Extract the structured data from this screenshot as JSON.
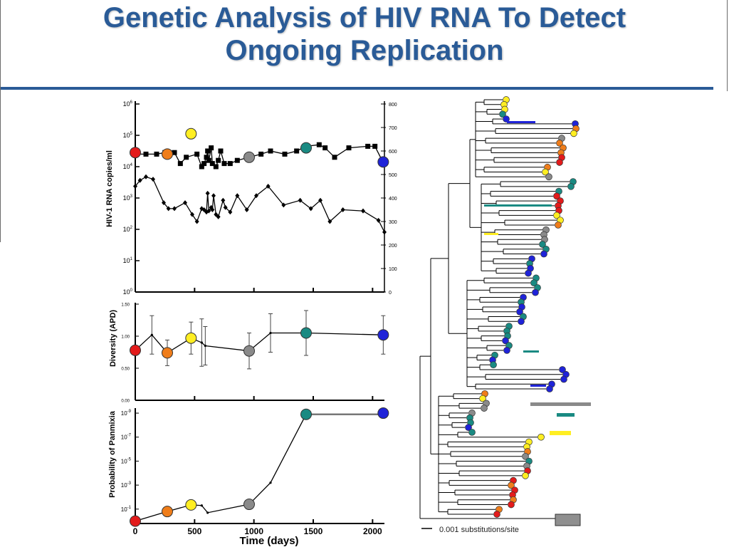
{
  "slide": {
    "title_line1": "Genetic Analysis of HIV RNA To Detect",
    "title_line2": "Ongoing Replication"
  },
  "colors": {
    "title": "#2a5b97",
    "red": "#e31b1b",
    "orange": "#ef7d1a",
    "yellow": "#ffee22",
    "gray": "#8a8a8a",
    "teal": "#1a8a82",
    "blue": "#1f23d8"
  },
  "chart_data": [
    {
      "type": "line",
      "panel": "viral-load",
      "xlim": [
        0,
        2100
      ],
      "ylabel": "HIV-1 RNA copies/ml",
      "y_ticks_left": [
        "10^0",
        "10^1",
        "10^2",
        "10^3",
        "10^4",
        "10^5",
        "10^6"
      ],
      "y_ticks_right": [
        "0",
        "100",
        "200",
        "300",
        "400",
        "500",
        "600",
        "700",
        "800"
      ],
      "ylim_right": [
        0,
        800
      ],
      "series": [
        {
          "marker": "square",
          "points": [
            [
              0,
              4.4
            ],
            [
              90,
              4.4
            ],
            [
              180,
              4.4
            ],
            [
              250,
              4.45
            ],
            [
              330,
              4.45
            ],
            [
              380,
              4.1
            ],
            [
              430,
              4.3
            ],
            [
              520,
              4.4
            ],
            [
              560,
              4.0
            ],
            [
              580,
              4.1
            ],
            [
              600,
              4.3
            ],
            [
              610,
              4.5
            ],
            [
              620,
              4.2
            ],
            [
              640,
              4.6
            ],
            [
              650,
              4.1
            ],
            [
              680,
              4.0
            ],
            [
              700,
              4.2
            ],
            [
              720,
              4.5
            ],
            [
              750,
              4.1
            ],
            [
              800,
              4.1
            ],
            [
              860,
              4.2
            ],
            [
              960,
              4.3
            ],
            [
              1060,
              4.4
            ],
            [
              1140,
              4.5
            ],
            [
              1260,
              4.4
            ],
            [
              1360,
              4.5
            ],
            [
              1440,
              4.65
            ],
            [
              1550,
              4.7
            ],
            [
              1600,
              4.6
            ],
            [
              1680,
              4.3
            ],
            [
              1800,
              4.6
            ],
            [
              1960,
              4.65
            ],
            [
              2020,
              4.65
            ],
            [
              2080,
              4.2
            ]
          ]
        },
        {
          "marker": "diamond",
          "points": [
            [
              0,
              450
            ],
            [
              40,
              475
            ],
            [
              90,
              490
            ],
            [
              150,
              480
            ],
            [
              240,
              380
            ],
            [
              280,
              355
            ],
            [
              330,
              355
            ],
            [
              420,
              380
            ],
            [
              480,
              330
            ],
            [
              520,
              300
            ],
            [
              560,
              355
            ],
            [
              580,
              350
            ],
            [
              600,
              340
            ],
            [
              610,
              420
            ],
            [
              620,
              345
            ],
            [
              640,
              360
            ],
            [
              650,
              350
            ],
            [
              660,
              410
            ],
            [
              680,
              330
            ],
            [
              700,
              320
            ],
            [
              740,
              390
            ],
            [
              760,
              360
            ],
            [
              800,
              340
            ],
            [
              860,
              410
            ],
            [
              940,
              350
            ],
            [
              1020,
              410
            ],
            [
              1120,
              450
            ],
            [
              1250,
              370
            ],
            [
              1390,
              390
            ],
            [
              1480,
              355
            ],
            [
              1560,
              390
            ],
            [
              1640,
              300
            ],
            [
              1750,
              350
            ],
            [
              1920,
              345
            ],
            [
              2050,
              305
            ],
            [
              2100,
              255
            ]
          ]
        }
      ],
      "colored_points": [
        {
          "x": 0,
          "y": 4.45,
          "color": "red"
        },
        {
          "x": 270,
          "y": 4.4,
          "color": "orange"
        },
        {
          "x": 470,
          "y": 5.05,
          "color": "yellow"
        },
        {
          "x": 960,
          "y": 4.3,
          "color": "gray"
        },
        {
          "x": 1440,
          "y": 4.6,
          "color": "teal"
        },
        {
          "x": 2090,
          "y": 4.15,
          "color": "blue"
        }
      ]
    },
    {
      "type": "line",
      "panel": "diversity",
      "xlim": [
        0,
        2100
      ],
      "ylim": [
        0,
        1.5
      ],
      "ylabel": "Diversity (APD)",
      "y_ticks": [
        "0.00",
        "0.50",
        "1.00",
        "1.50"
      ],
      "points": [
        {
          "x": 0,
          "y": 0.78,
          "err": 0,
          "color": "red"
        },
        {
          "x": 140,
          "y": 1.02,
          "err": 0.3
        },
        {
          "x": 270,
          "y": 0.74,
          "err": 0.2,
          "color": "orange"
        },
        {
          "x": 470,
          "y": 0.97,
          "err": 0.25,
          "color": "yellow"
        },
        {
          "x": 560,
          "y": 0.9,
          "err": 0.37
        },
        {
          "x": 590,
          "y": 0.85,
          "err": 0.3
        },
        {
          "x": 960,
          "y": 0.77,
          "err": 0.28,
          "color": "gray"
        },
        {
          "x": 1140,
          "y": 1.05,
          "err": 0.3
        },
        {
          "x": 1440,
          "y": 1.05,
          "err": 0.35,
          "color": "teal"
        },
        {
          "x": 2090,
          "y": 1.02,
          "err": 0.3,
          "color": "blue"
        }
      ]
    },
    {
      "type": "line",
      "panel": "panmixia",
      "xlim": [
        0,
        2100
      ],
      "ylabel": "Probability of Panmixia",
      "y_ticks": [
        "10^-1",
        "10^-3",
        "10^-5",
        "10^-7",
        "10^-9"
      ],
      "y_tick_values": [
        -1,
        -3,
        -5,
        -7,
        -9
      ],
      "ylim": [
        0.2,
        -9.3
      ],
      "xlabel": "Time (days)",
      "x_ticks": [
        "0",
        "500",
        "1000",
        "1500",
        "2000"
      ],
      "x_tick_values": [
        0,
        500,
        1000,
        1500,
        2000
      ],
      "points": [
        {
          "x": 0,
          "y": 0,
          "color": "red"
        },
        {
          "x": 270,
          "y": -0.8,
          "color": "orange"
        },
        {
          "x": 470,
          "y": -1.35,
          "color": "yellow"
        },
        {
          "x": 560,
          "y": -1.3
        },
        {
          "x": 610,
          "y": -0.7
        },
        {
          "x": 960,
          "y": -1.4,
          "color": "gray"
        },
        {
          "x": 1140,
          "y": -3.2
        },
        {
          "x": 1440,
          "y": -8.9,
          "color": "teal"
        },
        {
          "x": 2090,
          "y": -9.0,
          "color": "blue"
        }
      ]
    },
    {
      "type": "tree",
      "panel": "phylogenetic-tree",
      "scale_label": "0.001 substitutions/site",
      "leaves": [
        [
          "yellow",
          "yellow",
          "yellow",
          "teal",
          "blue",
          "blue",
          "orange",
          "yellow",
          "gray",
          "orange",
          "orange",
          "orange",
          "red",
          "red",
          "orange",
          "yellow",
          "gray"
        ],
        [
          "teal",
          "teal",
          "teal",
          "red",
          "red",
          "red",
          "red",
          "yellow",
          "yellow",
          "orange",
          "gray",
          "gray",
          "gray",
          "teal",
          "teal",
          "blue",
          "blue",
          "teal",
          "blue",
          "blue"
        ],
        [
          "teal",
          "teal",
          "teal",
          "blue",
          "blue",
          "teal",
          "blue",
          "blue",
          "teal",
          "blue",
          "teal",
          "teal",
          "teal",
          "blue",
          "teal",
          "blue",
          "teal",
          "blue",
          "teal",
          "blue",
          "blue",
          "blue",
          "blue",
          "blue"
        ],
        [
          "orange",
          "yellow",
          "gray",
          "gray",
          "gray",
          "teal",
          "teal",
          "blue",
          "teal",
          "yellow",
          "yellow",
          "yellow",
          "orange",
          "gray",
          "teal",
          "gray",
          "red",
          "yellow",
          "red",
          "orange",
          "red",
          "red",
          "orange",
          "red",
          "orange",
          "red"
        ]
      ]
    }
  ]
}
